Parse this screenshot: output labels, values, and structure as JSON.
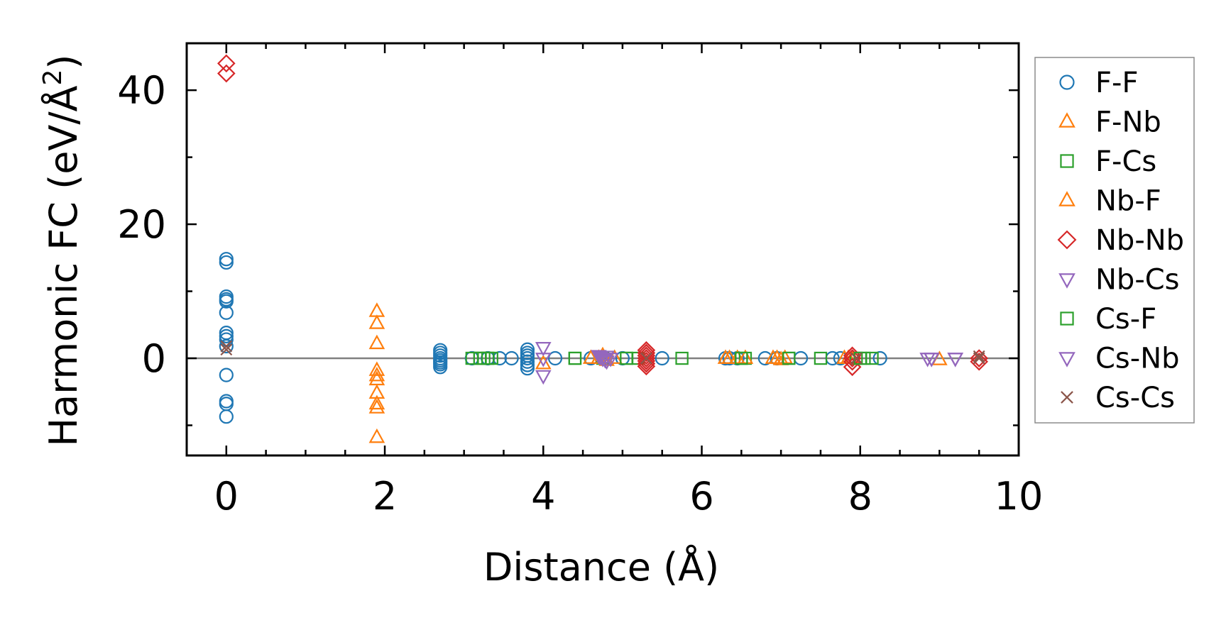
{
  "chart_data": {
    "type": "scatter",
    "title": "",
    "xlabel": "Distance (Å)",
    "ylabel_main": "Harmonic FC (eV/Å",
    "ylabel_sup": "2",
    "ylabel_close": ")",
    "xlim": [
      -0.5,
      10
    ],
    "ylim": [
      -14.5,
      47
    ],
    "xticks": [
      0,
      2,
      4,
      6,
      8,
      10
    ],
    "xtick_labels": [
      "0",
      "2",
      "4",
      "6",
      "8",
      "10"
    ],
    "yticks": [
      0,
      20,
      40
    ],
    "ytick_labels": [
      "0",
      "20",
      "40"
    ],
    "xminor_step": 0.5,
    "yminor_step": 10,
    "zero_line": true,
    "grid": false,
    "legend_position": "outside right",
    "series": [
      {
        "name": "F-F",
        "marker": "circle",
        "color": "#1f77b4",
        "x": [
          0,
          0,
          0,
          0,
          0,
          0,
          0,
          0,
          0,
          0,
          0,
          0,
          0,
          0,
          2.7,
          2.7,
          2.7,
          2.7,
          2.7,
          2.7,
          2.7,
          2.7,
          3.1,
          3.3,
          3.45,
          3.6,
          3.8,
          3.8,
          3.8,
          3.8,
          3.8,
          3.8,
          3.8,
          4.15,
          4.6,
          5.0,
          5.5,
          6.3,
          6.35,
          6.45,
          6.8,
          6.95,
          7.25,
          7.65,
          7.75,
          8.25
        ],
        "y": [
          14.8,
          14.3,
          9.2,
          8.8,
          8.5,
          6.8,
          3.8,
          3.3,
          2.8,
          1.8,
          -2.5,
          -6.4,
          -6.8,
          -8.7,
          1.2,
          0.8,
          0.4,
          0,
          -0.3,
          -0.6,
          -0.9,
          -1.3,
          0,
          0,
          0,
          0,
          1.3,
          0.8,
          0.4,
          0,
          -0.5,
          -1.0,
          -1.5,
          0,
          0,
          0,
          0,
          0,
          0,
          0,
          0,
          0,
          0,
          0,
          0,
          0
        ]
      },
      {
        "name": "F-Nb",
        "marker": "triangle-up",
        "color": "#ff7f0e",
        "x": [
          1.9,
          1.9,
          1.9,
          1.9,
          1.9,
          1.9,
          1.9,
          1.9,
          1.9,
          1.9,
          4.0,
          4.6,
          4.7,
          4.9,
          6.3,
          6.45,
          6.9,
          7.0,
          7.85,
          9.0
        ],
        "y": [
          7.0,
          5.2,
          2.2,
          -1.8,
          -2.6,
          -3.2,
          -5.2,
          -6.8,
          -7.4,
          -11.8,
          -0.8,
          0,
          0,
          0,
          0,
          0,
          0,
          -0.2,
          0,
          -0.2
        ]
      },
      {
        "name": "F-Cs",
        "marker": "square",
        "color": "#2ca02c",
        "x": [
          3.1,
          3.2,
          3.25,
          3.3,
          3.35,
          4.4,
          4.75,
          5.05,
          5.2,
          5.75,
          6.5,
          6.55,
          7.1,
          7.5,
          7.95,
          8.05,
          8.15
        ],
        "y": [
          0,
          0,
          0,
          0,
          0,
          0,
          0,
          0,
          0,
          0,
          0,
          0,
          0,
          0,
          0,
          0,
          0
        ]
      },
      {
        "name": "Nb-F",
        "marker": "triangle-up",
        "color": "#ff7f0e",
        "x": [
          4.7,
          4.75,
          4.8,
          6.35,
          6.55,
          6.95,
          7.05,
          7.8,
          7.9
        ],
        "y": [
          0,
          0.4,
          -0.3,
          0,
          0,
          0,
          0,
          0,
          0
        ]
      },
      {
        "name": "Nb-Nb",
        "marker": "diamond",
        "color": "#d62728",
        "x": [
          0,
          0,
          5.3,
          5.3,
          5.3,
          5.3,
          5.3,
          5.3,
          5.3,
          7.9,
          7.9,
          7.9,
          7.9,
          9.5,
          9.5
        ],
        "y": [
          44,
          42.5,
          1.2,
          0.8,
          0.4,
          0,
          -0.4,
          -0.8,
          -1.2,
          0.4,
          0,
          -0.5,
          -1.3,
          0,
          -0.5
        ]
      },
      {
        "name": "Nb-Cs",
        "marker": "triangle-down",
        "color": "#9467bd",
        "x": [
          4.0,
          4.0,
          4.0,
          4.7,
          4.72,
          4.75,
          4.78,
          4.8,
          4.85,
          8.85,
          8.9,
          9.2
        ],
        "y": [
          1.6,
          0,
          -2.6,
          0.4,
          0.2,
          0,
          -0.2,
          -0.4,
          0,
          0,
          0,
          0
        ]
      },
      {
        "name": "Cs-F",
        "marker": "square",
        "color": "#2ca02c",
        "x": [
          3.2,
          3.3,
          4.4,
          5.05,
          6.5,
          7.1,
          8.0
        ],
        "y": [
          0,
          0,
          0,
          0,
          0,
          0,
          0
        ]
      },
      {
        "name": "Cs-Nb",
        "marker": "triangle-down",
        "color": "#9467bd",
        "x": [
          4.75,
          4.8,
          8.9,
          9.2
        ],
        "y": [
          0,
          0.3,
          0,
          0
        ]
      },
      {
        "name": "Cs-Cs",
        "marker": "x",
        "color": "#8c564b",
        "x": [
          0,
          0,
          5.3,
          9.5,
          9.5,
          7.95
        ],
        "y": [
          1.8,
          1.3,
          0,
          0.3,
          0,
          0
        ]
      }
    ]
  }
}
